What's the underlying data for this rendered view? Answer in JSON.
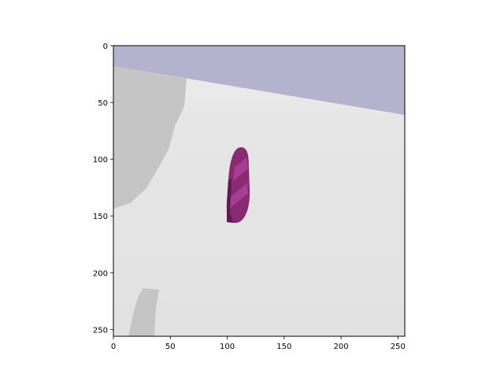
{
  "chart_data": {
    "type": "image",
    "title": "",
    "xlabel": "",
    "ylabel": "",
    "xlim": [
      0,
      256
    ],
    "ylim": [
      256,
      0
    ],
    "x_ticks": [
      0,
      50,
      100,
      150,
      200,
      250
    ],
    "y_ticks": [
      0,
      50,
      100,
      150,
      200,
      250
    ],
    "x_tick_labels": [
      "0",
      "50",
      "100",
      "150",
      "200",
      "250"
    ],
    "y_tick_labels": [
      "0",
      "50",
      "100",
      "150",
      "200",
      "250"
    ],
    "grid": false,
    "legend": "none"
  },
  "scene": {
    "sky_color": "#b3b3ce",
    "ground_color": "#e2e2e2",
    "shadow_color": "#c5c5c5",
    "object_color": "#8a2a72",
    "object_highlight_color": "#a63d93",
    "object_dark_color": "#5c1a4d"
  }
}
